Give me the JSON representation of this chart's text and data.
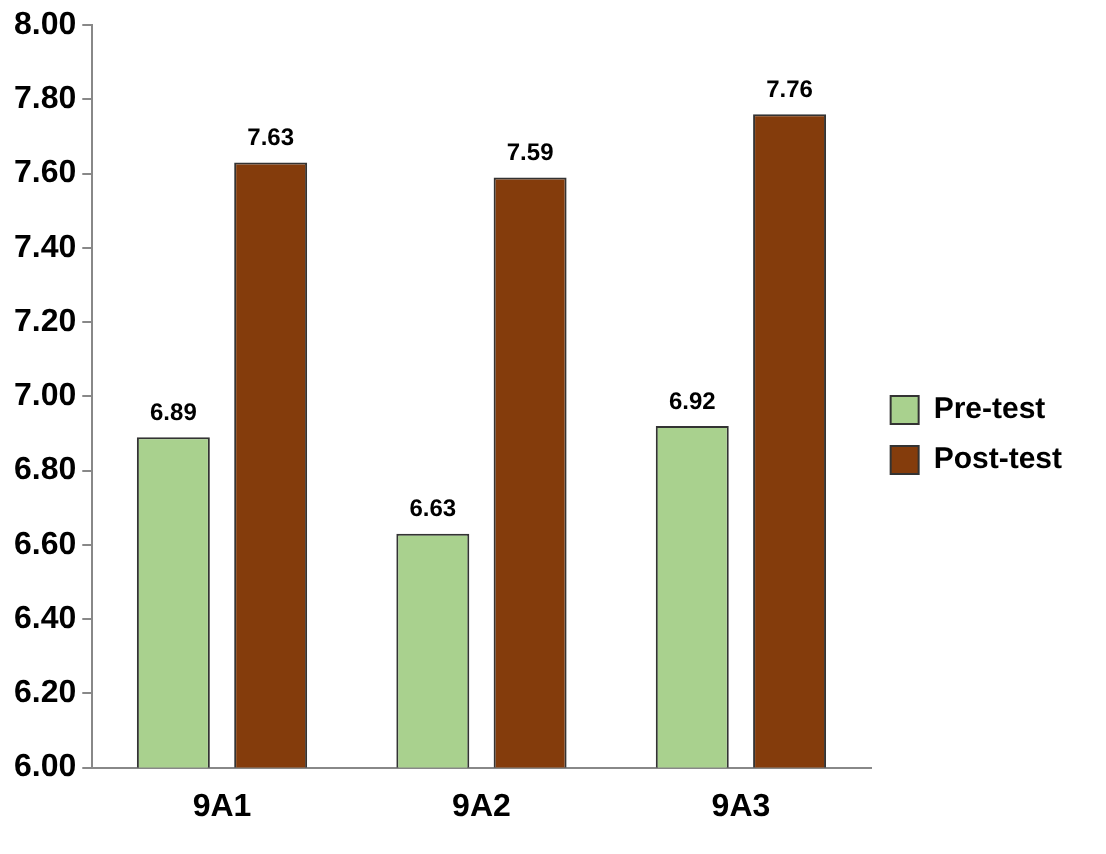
{
  "chart_data": {
    "type": "bar",
    "categories": [
      "9A1",
      "9A2",
      "9A3"
    ],
    "series": [
      {
        "name": "Pre-test",
        "color": "#a9d18e",
        "values": [
          6.89,
          6.63,
          6.92
        ]
      },
      {
        "name": "Post-test",
        "color": "#843c0c",
        "values": [
          7.63,
          7.59,
          7.76
        ]
      }
    ],
    "ylim": [
      6,
      8
    ],
    "yticks": [
      {
        "value": 6,
        "label": "6.00"
      },
      {
        "value": 6.2,
        "label": "6.20"
      },
      {
        "value": 6.4,
        "label": "6.40"
      },
      {
        "value": 6.6,
        "label": "6.60"
      },
      {
        "value": 6.8,
        "label": "6.80"
      },
      {
        "value": 7,
        "label": "7.00"
      },
      {
        "value": 7.2,
        "label": "7.20"
      },
      {
        "value": 7.4,
        "label": "7.40"
      },
      {
        "value": 7.6,
        "label": "7.60"
      },
      {
        "value": 7.8,
        "label": "7.80"
      },
      {
        "value": 8,
        "label": "8.00"
      }
    ],
    "grid": false,
    "legend": "right",
    "data_labels": true
  }
}
